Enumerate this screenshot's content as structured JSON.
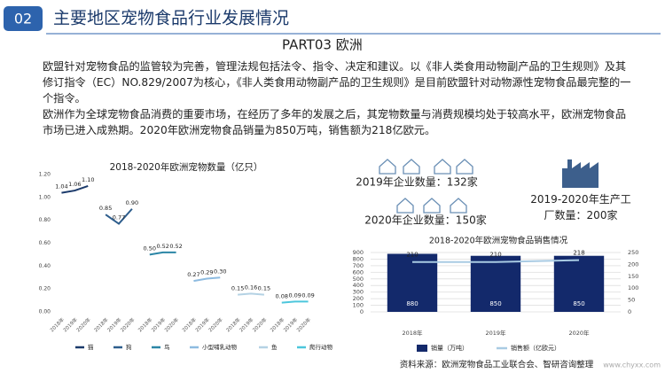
{
  "header": {
    "number": "02",
    "title": "主要地区宠物食品行业发展情况"
  },
  "section": "PART03   欧洲",
  "paragraphs": [
    "欧盟针对宠物食品的监管较为完善，管理法规包括法令、指令、决定和建议。以《非人类食用动物副产品的卫生规则》及其修订指令（EC）NO.829/2007为核心，《非人类食用动物副产品的卫生规则》是目前欧盟针对动物源性宠物食品最完整的一个指令。",
    "欧洲作为全球宠物食品消费的重要市场，在经历了多年的发展之后，其宠物数量与消费规模均处于较高水平，欧洲宠物食品市场已进入成熟期。2020年欧洲宠物食品销量为850万吨，销售额为218亿欧元。"
  ],
  "info": [
    "2019年企业数量：132家",
    "2020年企业数量：150家",
    "2019-2020年生产工厂数量：200家"
  ],
  "chart_data": [
    {
      "type": "line",
      "title": "2018-2020年欧洲宠物数量（亿只）",
      "categories": [
        "2018年",
        "2019年",
        "2020年"
      ],
      "series": [
        {
          "name": "猫",
          "color": "#1b3a6b",
          "values": [
            1.04,
            1.06,
            1.1
          ],
          "value_labels": [
            "1.04",
            "1.06",
            "1.10"
          ]
        },
        {
          "name": "狗",
          "color": "#2d5d8c",
          "values": [
            0.85,
            0.77,
            0.9
          ],
          "value_labels": [
            "0.85",
            "0.77",
            "0.90"
          ]
        },
        {
          "name": "鸟",
          "color": "#2b86a6",
          "values": [
            0.5,
            0.52,
            0.52
          ],
          "value_labels": [
            "0.50",
            "0.52",
            "0.52"
          ]
        },
        {
          "name": "小型哺乳动物",
          "color": "#8dbbe0",
          "values": [
            0.27,
            0.29,
            0.3
          ],
          "value_labels": [
            "0.27",
            "0.29",
            "0.30"
          ]
        },
        {
          "name": "鱼",
          "color": "#b4d2e4",
          "values": [
            0.15,
            0.16,
            0.15
          ],
          "value_labels": [
            "0.15",
            "0.16",
            "0.15"
          ]
        },
        {
          "name": "爬行动物",
          "color": "#4cc6dc",
          "values": [
            0.08,
            0.09,
            0.09
          ],
          "value_labels": [
            "0.08",
            "0.09",
            "0.09"
          ]
        }
      ],
      "ylim": [
        0,
        1.2
      ],
      "yticks": [
        {
          "value": 0,
          "label": "0.00"
        },
        {
          "value": 0.2,
          "label": "0.20"
        },
        {
          "value": 0.4,
          "label": "0.40"
        },
        {
          "value": 0.6,
          "label": "0.60"
        },
        {
          "value": 0.8,
          "label": "0.80"
        },
        {
          "value": 1,
          "label": "1.00"
        },
        {
          "value": 1.2,
          "label": "1.20"
        }
      ],
      "grid": false
    },
    {
      "type": "bar",
      "title": "2018-2020年欧洲宠物食品销售情况",
      "categories": [
        "2018年",
        "2019年",
        "2020年"
      ],
      "series": [
        {
          "name": "销量（万吨）",
          "color": "#13296b",
          "values": [
            880,
            850,
            850
          ]
        },
        {
          "name": "销售额（亿欧元）",
          "color": "#a9cbe3",
          "values": [
            210,
            210,
            218
          ],
          "axis": "y2"
        }
      ],
      "ylim": [
        0,
        900
      ],
      "yticks": [
        0,
        100,
        200,
        300,
        400,
        500,
        600,
        700,
        800,
        900
      ],
      "y2lim": [
        0,
        250
      ],
      "y2ticks": [
        0,
        50,
        100,
        150,
        200,
        250
      ],
      "grid": true
    }
  ],
  "source": "资料来源：欧洲宠物食品工业联合会、智研咨询整理",
  "website": "www.chyxx.com"
}
